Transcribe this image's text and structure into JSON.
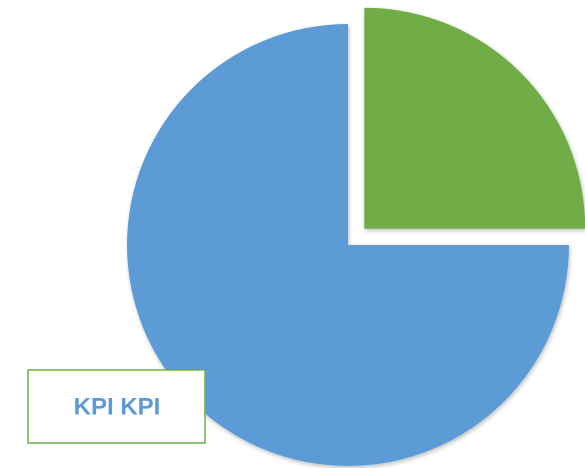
{
  "chart_data": {
    "type": "pie",
    "values": [
      25,
      75
    ],
    "colors": [
      "#70ad47",
      "#5b9bd5"
    ],
    "explode": [
      true,
      false
    ],
    "annotation": "KPI KPI"
  }
}
